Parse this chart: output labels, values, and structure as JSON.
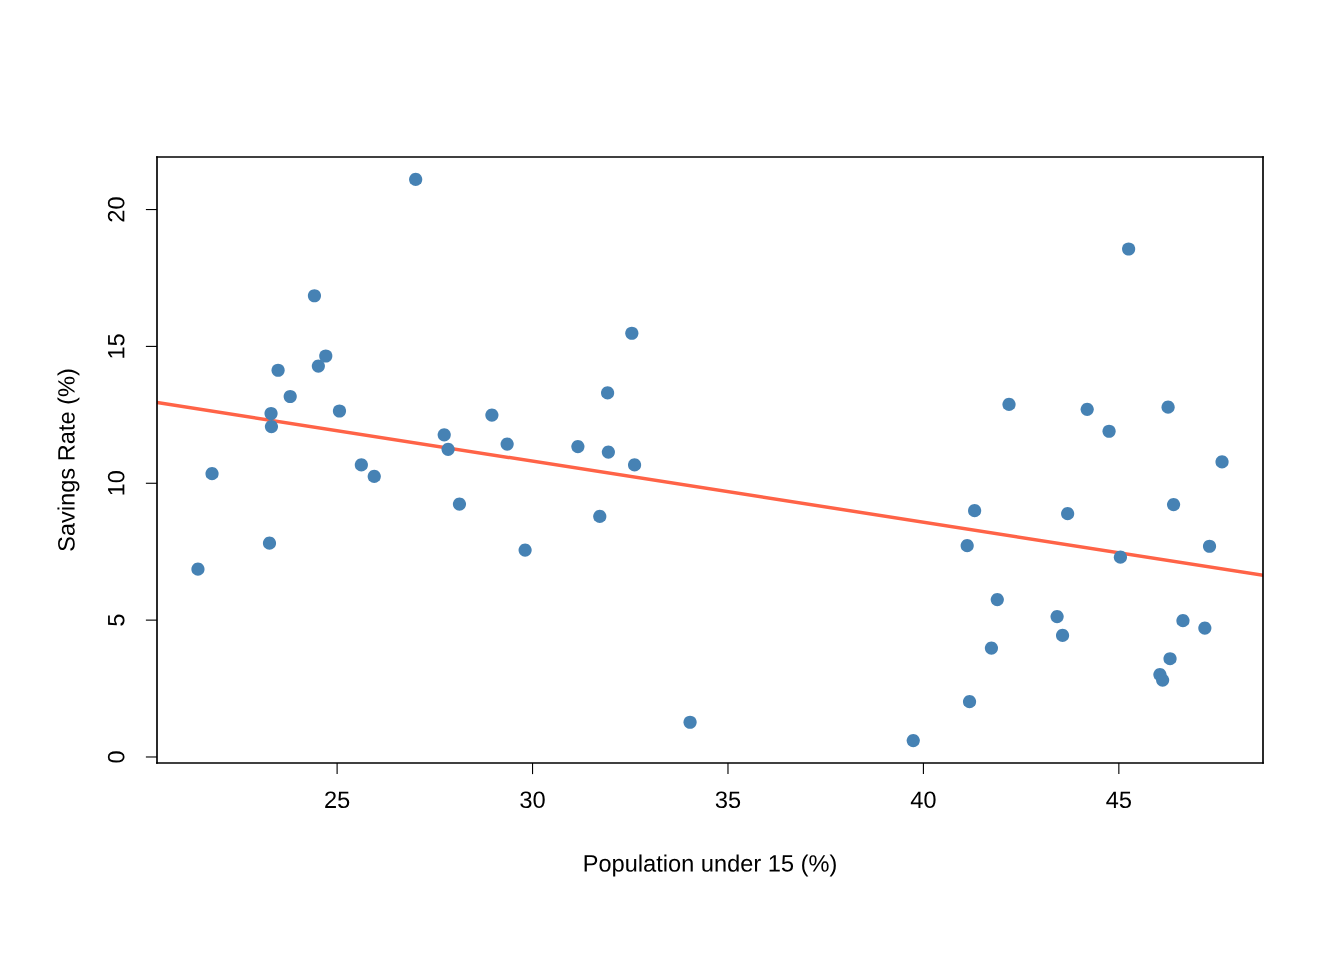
{
  "chart_data": {
    "type": "scatter",
    "xlabel": "Population under 15 (%)",
    "ylabel": "Savings Rate (%)",
    "xlim": [
      20.392,
      48.688
    ],
    "ylim": [
      -0.22,
      21.92
    ],
    "xticks": [
      25,
      30,
      35,
      40,
      45
    ],
    "yticks": [
      0,
      5,
      10,
      15,
      20
    ],
    "grid": false,
    "legend": false,
    "series": [
      {
        "marker": "circle",
        "color": "#4682b4",
        "x": [
          29.35,
          23.32,
          23.8,
          41.89,
          42.19,
          31.72,
          39.74,
          44.75,
          46.64,
          47.64,
          24.42,
          46.31,
          27.84,
          25.06,
          23.31,
          25.62,
          46.05,
          47.32,
          34.03,
          41.31,
          31.16,
          24.52,
          27.01,
          41.74,
          21.8,
          32.54,
          25.95,
          24.71,
          32.61,
          45.04,
          43.56,
          41.18,
          44.19,
          46.26,
          28.96,
          31.94,
          31.92,
          27.74,
          21.44,
          23.49,
          43.42,
          46.12,
          23.27,
          29.81,
          46.4,
          45.25,
          41.12,
          28.13,
          43.69,
          47.2
        ],
        "values": [
          11.43,
          12.07,
          13.17,
          5.75,
          12.88,
          8.79,
          0.6,
          11.9,
          4.98,
          10.78,
          16.85,
          3.59,
          11.24,
          12.64,
          12.55,
          10.67,
          3.01,
          7.7,
          1.27,
          9.0,
          11.34,
          14.28,
          21.1,
          3.98,
          10.35,
          15.48,
          10.25,
          14.65,
          10.67,
          7.3,
          4.44,
          2.02,
          12.7,
          12.78,
          12.49,
          11.14,
          13.3,
          11.77,
          6.86,
          14.13,
          5.13,
          2.81,
          7.81,
          7.56,
          9.22,
          18.56,
          7.72,
          9.24,
          8.89,
          4.71
        ]
      },
      {
        "type": "line",
        "marker": "none",
        "color": "#ff6347",
        "line_style": "solid",
        "x": [
          20.392,
          48.688
        ],
        "values": [
          12.95,
          6.64
        ]
      }
    ]
  }
}
